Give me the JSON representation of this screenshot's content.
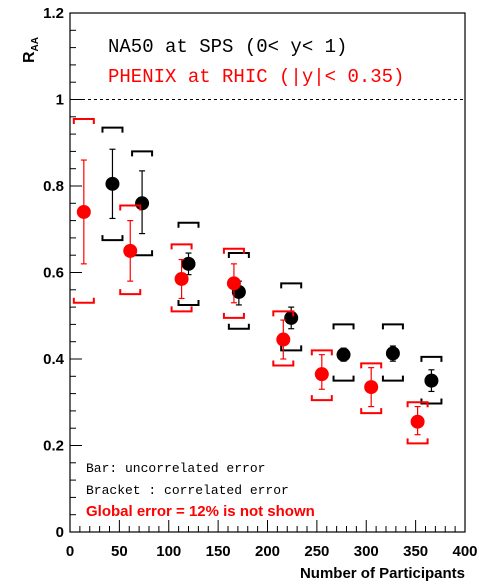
{
  "chart_data": {
    "type": "scatter",
    "xlabel": "Number of Participants",
    "ylabel": "R_AA",
    "ylabel_main": "R",
    "ylabel_sub": "AA",
    "xlim": [
      0,
      400
    ],
    "ylim": [
      0,
      1.2
    ],
    "x_ticks": [
      "0",
      "50",
      "100",
      "150",
      "200",
      "250",
      "300",
      "350",
      "400"
    ],
    "y_ticks": [
      "0",
      "0.2",
      "0.4",
      "0.6",
      "0.8",
      "1",
      "1.2"
    ],
    "grid": false,
    "reference_line": {
      "y": 1.0,
      "style": "dashed"
    },
    "legend_position": "top-right",
    "series": [
      {
        "name": "NA50 at SPS (0<y<1)",
        "color": "#000000",
        "points": [
          {
            "x": 43,
            "y": 0.805,
            "err_lo": 0.725,
            "err_hi": 0.885,
            "br_lo": 0.675,
            "br_hi": 0.935
          },
          {
            "x": 73,
            "y": 0.76,
            "err_lo": 0.69,
            "err_hi": 0.835,
            "br_lo": 0.64,
            "br_hi": 0.88
          },
          {
            "x": 120,
            "y": 0.62,
            "err_lo": 0.595,
            "err_hi": 0.645,
            "br_lo": 0.525,
            "br_hi": 0.715
          },
          {
            "x": 171,
            "y": 0.555,
            "err_lo": 0.525,
            "err_hi": 0.58,
            "br_lo": 0.47,
            "br_hi": 0.645
          },
          {
            "x": 224,
            "y": 0.495,
            "err_lo": 0.47,
            "err_hi": 0.52,
            "br_lo": 0.42,
            "br_hi": 0.575
          },
          {
            "x": 277,
            "y": 0.41,
            "err_lo": 0.395,
            "err_hi": 0.425,
            "br_lo": 0.35,
            "br_hi": 0.48
          },
          {
            "x": 327,
            "y": 0.413,
            "err_lo": 0.395,
            "err_hi": 0.43,
            "br_lo": 0.35,
            "br_hi": 0.48
          },
          {
            "x": 366,
            "y": 0.35,
            "err_lo": 0.325,
            "err_hi": 0.375,
            "br_lo": 0.297,
            "br_hi": 0.405
          }
        ]
      },
      {
        "name": "PHENIX at RHIC (|y|<0.35)",
        "color": "#ff0000",
        "points": [
          {
            "x": 14,
            "y": 0.74,
            "err_lo": 0.62,
            "err_hi": 0.86,
            "br_lo": 0.53,
            "br_hi": 0.955
          },
          {
            "x": 61,
            "y": 0.65,
            "err_lo": 0.58,
            "err_hi": 0.72,
            "br_lo": 0.55,
            "br_hi": 0.755
          },
          {
            "x": 113,
            "y": 0.585,
            "err_lo": 0.54,
            "err_hi": 0.63,
            "br_lo": 0.51,
            "br_hi": 0.665
          },
          {
            "x": 166,
            "y": 0.575,
            "err_lo": 0.53,
            "err_hi": 0.62,
            "br_lo": 0.495,
            "br_hi": 0.655
          },
          {
            "x": 216,
            "y": 0.445,
            "err_lo": 0.4,
            "err_hi": 0.49,
            "br_lo": 0.385,
            "br_hi": 0.51
          },
          {
            "x": 255,
            "y": 0.365,
            "err_lo": 0.33,
            "err_hi": 0.41,
            "br_lo": 0.305,
            "br_hi": 0.42
          },
          {
            "x": 305,
            "y": 0.335,
            "err_lo": 0.29,
            "err_hi": 0.38,
            "br_lo": 0.275,
            "br_hi": 0.39
          },
          {
            "x": 352,
            "y": 0.255,
            "err_lo": 0.225,
            "err_hi": 0.29,
            "br_lo": 0.205,
            "br_hi": 0.3
          }
        ]
      }
    ],
    "legend": {
      "na50_label": "NA50 at SPS (0< y< 1)",
      "phenix_label": "PHENIX at RHIC (|y|< 0.35)"
    },
    "notes": {
      "bar": "Bar: uncorrelated error",
      "bracket": "Bracket : correlated error",
      "global": "Global error = 12%  is not shown"
    }
  }
}
